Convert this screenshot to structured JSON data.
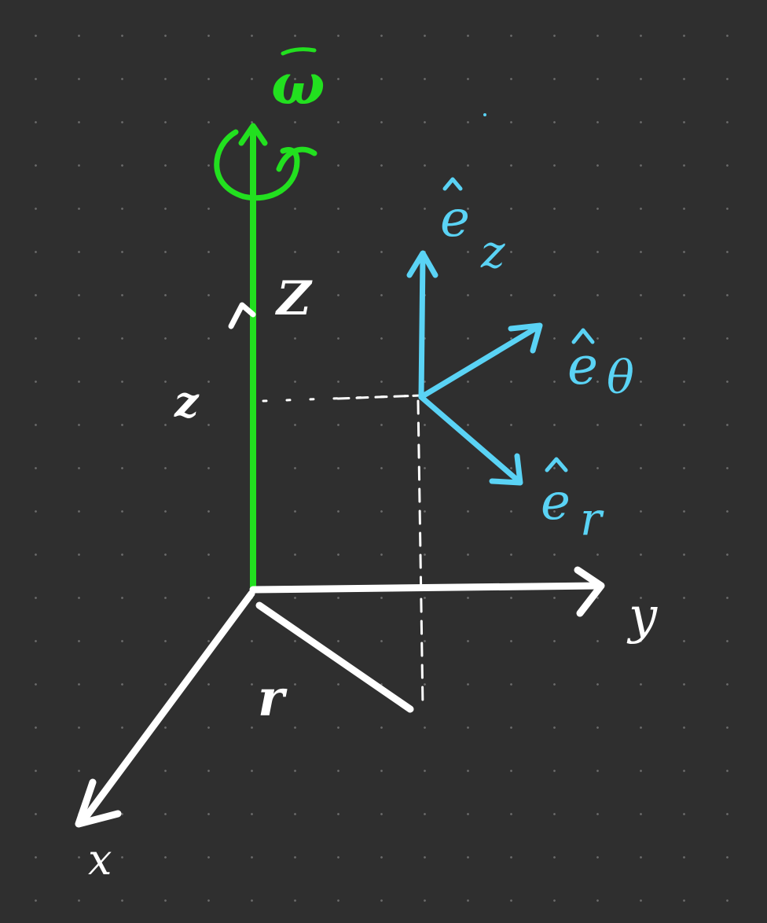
{
  "colors": {
    "background": "#2f2f2f",
    "grid_dot": "#6a6a6a",
    "axes": "#ffffff",
    "omega": "#22e01f",
    "unit_vectors": "#5ad3f5"
  },
  "labels": {
    "omega": "ω",
    "z_axis": "Z",
    "z_coord": "z",
    "r_coord": "r",
    "x_axis": "x",
    "y_axis": "y",
    "e_z": "e",
    "e_z_sub": "z",
    "e_theta": "e",
    "e_theta_sub": "θ",
    "e_r": "e",
    "e_r_sub": "r"
  }
}
